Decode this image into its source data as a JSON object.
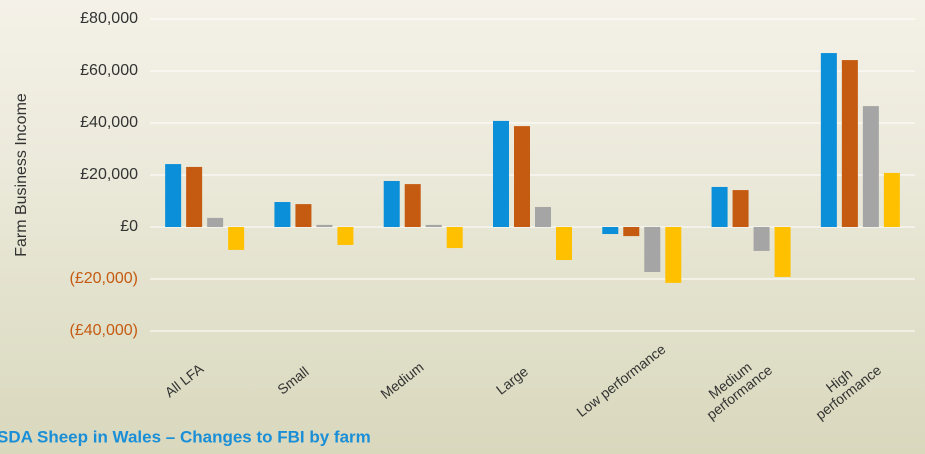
{
  "chart_data": {
    "type": "bar",
    "title": "SDA Sheep in Wales – Changes to FBI by farm",
    "y_label": "Farm Business Income",
    "categories": [
      "All LFA",
      "Small",
      "Medium",
      "Large",
      "Low performance",
      "Medium performance",
      "High performance"
    ],
    "series": [
      {
        "color": "#0a8fd8",
        "values": [
          24200,
          9600,
          17700,
          40800,
          -2700,
          15400,
          66900
        ]
      },
      {
        "color": "#c55a11",
        "values": [
          23100,
          8800,
          16500,
          38800,
          -3500,
          14200,
          64200
        ]
      },
      {
        "color": "#a5a5a5",
        "values": [
          3500,
          800,
          800,
          7700,
          -17300,
          -9200,
          46500
        ]
      },
      {
        "color": "#ffc000",
        "values": [
          -8800,
          -6900,
          -8100,
          -12700,
          -21500,
          -19200,
          20800
        ]
      }
    ],
    "ylim": [
      -40000,
      80000
    ],
    "yticks": [
      {
        "value": -40000,
        "label": "(£40,000)"
      },
      {
        "value": -20000,
        "label": "(£20,000)"
      },
      {
        "value": 0,
        "label": "£0"
      },
      {
        "value": 20000,
        "label": "£20,000"
      },
      {
        "value": 40000,
        "label": "£40,000"
      },
      {
        "value": 60000,
        "label": "£60,000"
      },
      {
        "value": 80000,
        "label": "£80,000"
      }
    ],
    "grid": true
  }
}
